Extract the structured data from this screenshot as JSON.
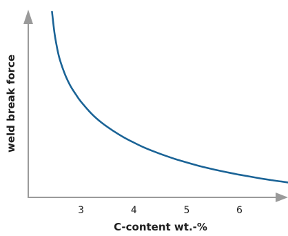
{
  "chart_data": {
    "type": "line",
    "title": "",
    "xlabel": "C-content wt.-%",
    "ylabel": "weld break force",
    "xlim": [
      2.0,
      6.92
    ],
    "ylim": [
      0,
      1
    ],
    "xticks": [
      3,
      4,
      5,
      6
    ],
    "xtick_labels": [
      "3",
      "4",
      "5",
      "6"
    ],
    "yticks": [],
    "grid": false,
    "legend": "none",
    "colors": {
      "axis": "#9a9a9a",
      "curve": "#1a6396",
      "text": "#1f1f1f"
    },
    "series": [
      {
        "x": [
          2.45,
          2.5,
          2.55,
          2.6,
          2.7,
          2.8,
          2.9,
          3.0,
          3.2,
          3.4,
          3.6,
          3.8,
          4.0,
          4.2,
          4.4,
          4.6,
          4.8,
          5.0,
          5.2,
          5.4,
          5.6,
          5.8,
          6.0,
          6.2,
          6.4,
          6.6,
          6.8,
          6.92
        ],
        "values": [
          1.0,
          0.88,
          0.8,
          0.74,
          0.66,
          0.6,
          0.555,
          0.515,
          0.45,
          0.4,
          0.36,
          0.325,
          0.295,
          0.268,
          0.245,
          0.224,
          0.205,
          0.188,
          0.172,
          0.158,
          0.145,
          0.133,
          0.122,
          0.112,
          0.102,
          0.093,
          0.085,
          0.08
        ]
      }
    ]
  }
}
